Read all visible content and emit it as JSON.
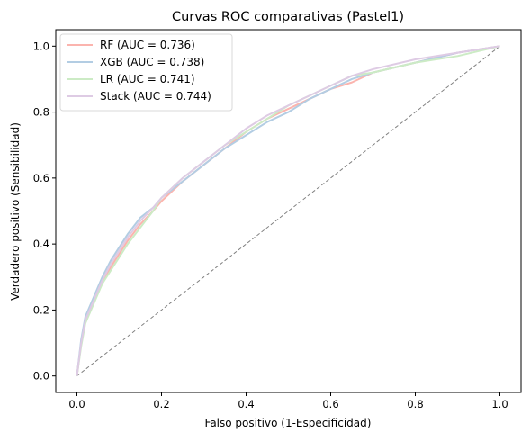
{
  "chart_data": {
    "type": "line",
    "title": "Curvas ROC comparativas (Pastel1)",
    "xlabel": "Falso positivo (1-Especificidad)",
    "ylabel": "Verdadero positivo (Sensibilidad)",
    "xlim": [
      -0.05,
      1.05
    ],
    "ylim": [
      -0.05,
      1.05
    ],
    "xticks": [
      "0.0",
      "0.2",
      "0.4",
      "0.6",
      "0.8",
      "1.0"
    ],
    "yticks": [
      "0.0",
      "0.2",
      "0.4",
      "0.6",
      "0.8",
      "1.0"
    ],
    "grid": false,
    "legend_position": "upper-left",
    "reference_line": {
      "x": [
        0,
        1
      ],
      "y": [
        0,
        1
      ],
      "color": "#808080",
      "style": "dashed"
    },
    "series": [
      {
        "name": "RF (AUC = 0.736)",
        "color": "#fbb4ae",
        "x": [
          0,
          0.01,
          0.02,
          0.04,
          0.06,
          0.08,
          0.1,
          0.12,
          0.15,
          0.18,
          0.2,
          0.25,
          0.3,
          0.35,
          0.4,
          0.45,
          0.5,
          0.55,
          0.6,
          0.65,
          0.7,
          0.8,
          0.9,
          1.0
        ],
        "y": [
          0,
          0.1,
          0.17,
          0.23,
          0.28,
          0.33,
          0.37,
          0.41,
          0.46,
          0.5,
          0.53,
          0.59,
          0.64,
          0.69,
          0.74,
          0.78,
          0.81,
          0.84,
          0.87,
          0.89,
          0.92,
          0.95,
          0.98,
          1.0
        ]
      },
      {
        "name": "XGB (AUC = 0.738)",
        "color": "#b3cde3",
        "x": [
          0,
          0.01,
          0.02,
          0.04,
          0.06,
          0.08,
          0.1,
          0.12,
          0.15,
          0.18,
          0.2,
          0.25,
          0.3,
          0.35,
          0.4,
          0.45,
          0.5,
          0.55,
          0.6,
          0.65,
          0.7,
          0.8,
          0.9,
          1.0
        ],
        "y": [
          0,
          0.11,
          0.18,
          0.24,
          0.3,
          0.35,
          0.39,
          0.43,
          0.48,
          0.51,
          0.54,
          0.59,
          0.64,
          0.69,
          0.73,
          0.77,
          0.8,
          0.84,
          0.87,
          0.9,
          0.92,
          0.95,
          0.98,
          1.0
        ]
      },
      {
        "name": "LR (AUC = 0.741)",
        "color": "#ccebc5",
        "x": [
          0,
          0.01,
          0.02,
          0.04,
          0.06,
          0.08,
          0.1,
          0.12,
          0.15,
          0.18,
          0.2,
          0.25,
          0.3,
          0.35,
          0.4,
          0.45,
          0.5,
          0.55,
          0.6,
          0.65,
          0.7,
          0.8,
          0.9,
          1.0
        ],
        "y": [
          0,
          0.09,
          0.16,
          0.22,
          0.28,
          0.32,
          0.36,
          0.4,
          0.45,
          0.5,
          0.54,
          0.6,
          0.65,
          0.7,
          0.74,
          0.78,
          0.82,
          0.85,
          0.88,
          0.91,
          0.92,
          0.95,
          0.97,
          1.0
        ]
      },
      {
        "name": "Stack (AUC = 0.744)",
        "color": "#decbe4",
        "x": [
          0,
          0.01,
          0.02,
          0.04,
          0.06,
          0.08,
          0.1,
          0.12,
          0.15,
          0.18,
          0.2,
          0.25,
          0.3,
          0.35,
          0.4,
          0.45,
          0.5,
          0.55,
          0.6,
          0.65,
          0.7,
          0.8,
          0.9,
          1.0
        ],
        "y": [
          0,
          0.1,
          0.17,
          0.23,
          0.29,
          0.34,
          0.38,
          0.42,
          0.47,
          0.51,
          0.54,
          0.6,
          0.65,
          0.7,
          0.75,
          0.79,
          0.82,
          0.85,
          0.88,
          0.91,
          0.93,
          0.96,
          0.98,
          1.0
        ]
      }
    ]
  }
}
